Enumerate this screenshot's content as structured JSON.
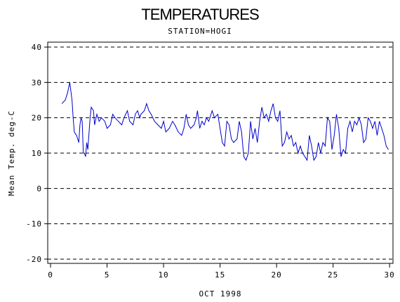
{
  "chart_data": {
    "type": "line",
    "title": "TEMPERATURES",
    "subtitle": "STATION=HOGI",
    "x_label": "OCT 1998",
    "y_label": "Mean Temp. deg-C",
    "xlim": [
      -0.25,
      30.3
    ],
    "xticks": [
      0,
      5,
      10,
      15,
      20,
      25,
      30
    ],
    "ylim": [
      -21.2,
      41.4
    ],
    "yticks": [
      -20,
      -10,
      0,
      10,
      20,
      30,
      40
    ],
    "grid": true,
    "series": [
      {
        "name": "Mean Temp",
        "color": "#0000cc",
        "x": [
          1,
          1.3,
          1.5,
          1.7,
          1.9,
          2.0,
          2.1,
          2.3,
          2.5,
          2.6,
          2.7,
          2.8,
          2.9,
          3.0,
          3.1,
          3.2,
          3.3,
          3.5,
          3.6,
          3.8,
          3.9,
          4.1,
          4.3,
          4.5,
          4.8,
          5.0,
          5.3,
          5.5,
          5.7,
          6.0,
          6.3,
          6.5,
          6.8,
          7.0,
          7.3,
          7.5,
          7.7,
          7.9,
          8.0,
          8.3,
          8.5,
          8.7,
          8.9,
          9.2,
          9.5,
          9.8,
          10.0,
          10.2,
          10.5,
          10.8,
          11.0,
          11.3,
          11.6,
          11.8,
          12.0,
          12.2,
          12.4,
          12.7,
          12.9,
          13.0,
          13.2,
          13.4,
          13.6,
          13.8,
          14.0,
          14.3,
          14.5,
          14.8,
          15.0,
          15.2,
          15.4,
          15.6,
          15.8,
          16.0,
          16.2,
          16.5,
          16.7,
          16.9,
          17.1,
          17.3,
          17.5,
          17.7,
          17.9,
          18.1,
          18.3,
          18.5,
          18.7,
          18.9,
          19.1,
          19.3,
          19.5,
          19.7,
          19.9,
          20.1,
          20.3,
          20.5,
          20.7,
          20.9,
          21.1,
          21.3,
          21.5,
          21.7,
          21.9,
          22.1,
          22.3,
          22.5,
          22.7,
          22.9,
          23.1,
          23.3,
          23.5,
          23.7,
          23.9,
          24.1,
          24.3,
          24.5,
          24.7,
          24.9,
          25.1,
          25.3,
          25.5,
          25.7,
          25.9,
          26.1,
          26.3,
          26.5,
          26.7,
          26.9,
          27.1,
          27.3,
          27.5,
          27.7,
          27.9,
          28.1,
          28.3,
          28.5,
          28.7,
          28.9,
          29.1,
          29.3,
          29.5,
          29.7,
          29.9
        ],
        "values": [
          24,
          25,
          27,
          30,
          25,
          20,
          16,
          15,
          13,
          18,
          20,
          19,
          10,
          10,
          9,
          13,
          11,
          20,
          23,
          22,
          18,
          21,
          19,
          20,
          19,
          17,
          18,
          21,
          20,
          19,
          18,
          20,
          22,
          19,
          18,
          21,
          22,
          20,
          21,
          22,
          24,
          22,
          21,
          19,
          18,
          17,
          19,
          16,
          17,
          19,
          18,
          16,
          15,
          17,
          21,
          18,
          17,
          18,
          20,
          22,
          17,
          19,
          18,
          20,
          19,
          22,
          20,
          21,
          17,
          13,
          12,
          19,
          18,
          14,
          13,
          14,
          19,
          16,
          9,
          8,
          10,
          19,
          14,
          17,
          13,
          19,
          23,
          20,
          21,
          19,
          22,
          24,
          20,
          19,
          22,
          12,
          13,
          16,
          14,
          15,
          12,
          13,
          10,
          12,
          10,
          9,
          8,
          15,
          12,
          8,
          9,
          13,
          10,
          13,
          12,
          20,
          19,
          11,
          15,
          21,
          17,
          9,
          11,
          10,
          17,
          19,
          16,
          19,
          18,
          20,
          18,
          13,
          14,
          20,
          19,
          17,
          19,
          15,
          19,
          17,
          15,
          12,
          11
        ]
      }
    ]
  }
}
